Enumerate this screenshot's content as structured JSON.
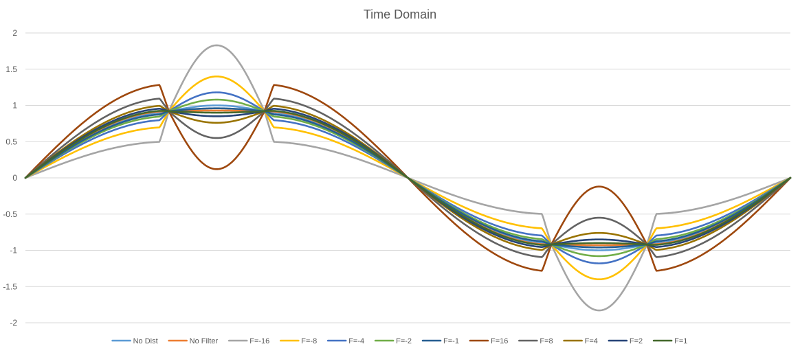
{
  "chart_data": {
    "type": "line",
    "title": "Time Domain",
    "xlabel": "",
    "ylabel": "",
    "ylim": [
      -2,
      2
    ],
    "yticks": [
      2,
      1.5,
      1,
      0.5,
      0,
      -0.5,
      -1,
      -1.5,
      -2
    ],
    "ytick_labels": [
      "2",
      "1.5",
      "1",
      "0.5",
      "0",
      "-0.5",
      "-1",
      "-1.5",
      "-2"
    ],
    "x_range": [
      0,
      1
    ],
    "grid": true,
    "legend_position": "bottom",
    "series": [
      {
        "name": "No Dist",
        "color": "#5b9bd5",
        "peak": 1.0,
        "flat": 0.905
      },
      {
        "name": "No Filter",
        "color": "#ed7d31",
        "peak": 0.93,
        "flat": 0.92
      },
      {
        "name": "F=-16",
        "color": "#a5a5a5",
        "peak": 1.83,
        "flat": 0.5
      },
      {
        "name": "F=-8",
        "color": "#ffc000",
        "peak": 1.4,
        "flat": 0.7
      },
      {
        "name": "F=-4",
        "color": "#4472c4",
        "peak": 1.18,
        "flat": 0.8
      },
      {
        "name": "F=-2",
        "color": "#70ad47",
        "peak": 1.08,
        "flat": 0.85
      },
      {
        "name": "F=-1",
        "color": "#255e91",
        "peak": 0.96,
        "flat": 0.88
      },
      {
        "name": "F=16",
        "color": "#9e480e",
        "peak": 0.12,
        "flat": 1.29
      },
      {
        "name": "F=8",
        "color": "#636363",
        "peak": 0.55,
        "flat": 1.1
      },
      {
        "name": "F=4",
        "color": "#997300",
        "peak": 0.76,
        "flat": 1.0
      },
      {
        "name": "F=2",
        "color": "#264478",
        "peak": 0.85,
        "flat": 0.96
      },
      {
        "name": "F=1",
        "color": "#43682b",
        "peak": 0.9,
        "flat": 0.93
      }
    ]
  }
}
